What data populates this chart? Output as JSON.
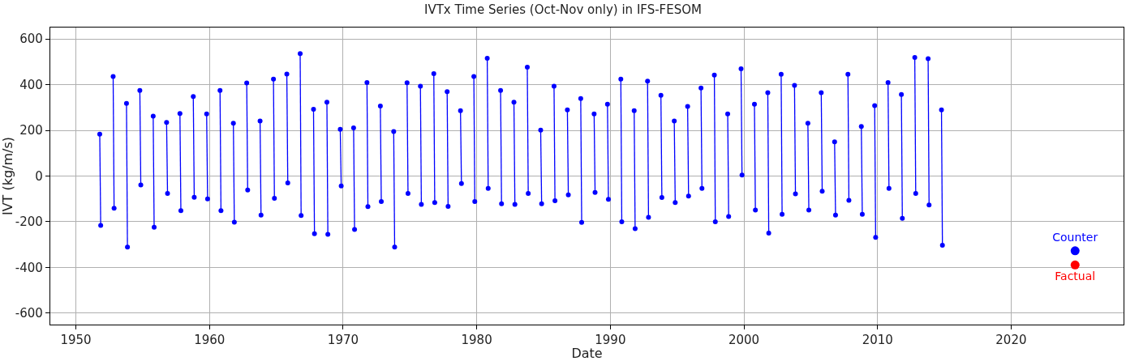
{
  "chart_data": {
    "type": "line",
    "title": "IVTx Time Series (Oct-Nov only) in IFS-FESOM",
    "xlabel": "Date",
    "ylabel": "IVT (kg/m/s)",
    "xlim": [
      "1948-02-01",
      "2028-06-01"
    ],
    "xticks": [
      "1950",
      "1960",
      "1970",
      "1980",
      "1990",
      "2000",
      "2010",
      "2020"
    ],
    "ylim": [
      -650,
      650
    ],
    "yticks": [
      -600,
      -400,
      -200,
      0,
      200,
      400,
      600
    ],
    "grid": true,
    "marker": "circle",
    "line_style": "solid",
    "series": [
      {
        "color": "#0000ff",
        "x": [
          "1951-10-15",
          "1951-11-10",
          "1952-06-01",
          "1952-10-15",
          "1952-11-10",
          "1953-06-01",
          "1953-10-15",
          "1953-11-10",
          "1954-06-01",
          "1954-10-15",
          "1954-11-10",
          "1955-06-01",
          "1955-10-15",
          "1955-11-10",
          "1956-06-01",
          "1956-10-15",
          "1956-11-10",
          "1957-06-01",
          "1957-10-15",
          "1957-11-10",
          "1958-06-01",
          "1958-10-15",
          "1958-11-10",
          "1959-06-01",
          "1959-10-15",
          "1959-11-10",
          "1960-06-01",
          "1960-10-15",
          "1960-11-10",
          "1961-06-01",
          "1961-10-15",
          "1961-11-10",
          "1962-06-01",
          "1962-10-15",
          "1962-11-10",
          "1963-06-01",
          "1963-10-15",
          "1963-11-10",
          "1964-06-01",
          "1964-10-15",
          "1964-11-10",
          "1965-06-01",
          "1965-10-15",
          "1965-11-10",
          "1966-06-01",
          "1966-10-15",
          "1966-11-10",
          "1967-06-01",
          "1967-10-15",
          "1967-11-10",
          "1968-06-01",
          "1968-10-15",
          "1968-11-10",
          "1969-06-01",
          "1969-10-15",
          "1969-11-10",
          "1970-06-01",
          "1970-10-15",
          "1970-11-10",
          "1971-06-01",
          "1971-10-15",
          "1971-11-10",
          "1972-06-01",
          "1972-10-15",
          "1972-11-10",
          "1973-06-01",
          "1973-10-15",
          "1973-11-10",
          "1974-06-01",
          "1974-10-15",
          "1974-11-10",
          "1975-06-01",
          "1975-10-15",
          "1975-11-10",
          "1976-06-01",
          "1976-10-15",
          "1976-11-10",
          "1977-06-01",
          "1977-10-15",
          "1977-11-10",
          "1978-06-01",
          "1978-10-15",
          "1978-11-10",
          "1979-06-01",
          "1979-10-15",
          "1979-11-10",
          "1980-06-01",
          "1980-10-15",
          "1980-11-10",
          "1981-06-01",
          "1981-10-15",
          "1981-11-10",
          "1982-06-01",
          "1982-10-15",
          "1982-11-10",
          "1983-06-01",
          "1983-10-15",
          "1983-11-10",
          "1984-06-01",
          "1984-10-15",
          "1984-11-10",
          "1985-06-01",
          "1985-10-15",
          "1985-11-10",
          "1986-06-01",
          "1986-10-15",
          "1986-11-10",
          "1987-06-01",
          "1987-10-15",
          "1987-11-10",
          "1988-06-01",
          "1988-10-15",
          "1988-11-10",
          "1989-06-01",
          "1989-10-15",
          "1989-11-10",
          "1990-06-01",
          "1990-10-15",
          "1990-11-10",
          "1991-06-01",
          "1991-10-15",
          "1991-11-10",
          "1992-06-01",
          "1992-10-15",
          "1992-11-10",
          "1993-06-01",
          "1993-10-15",
          "1993-11-10",
          "1994-06-01",
          "1994-10-15",
          "1994-11-10",
          "1995-06-01",
          "1995-10-15",
          "1995-11-10",
          "1996-06-01",
          "1996-10-15",
          "1996-11-10",
          "1997-06-01",
          "1997-10-15",
          "1997-11-10",
          "1998-06-01",
          "1998-10-15",
          "1998-11-10",
          "1999-06-01",
          "1999-10-15",
          "1999-11-10",
          "2000-06-01",
          "2000-10-15",
          "2000-11-10",
          "2001-06-01",
          "2001-10-15",
          "2001-11-10",
          "2002-06-01",
          "2002-10-15",
          "2002-11-10",
          "2003-06-01",
          "2003-10-15",
          "2003-11-10",
          "2004-06-01",
          "2004-10-15",
          "2004-11-10",
          "2005-06-01",
          "2005-10-15",
          "2005-11-10",
          "2006-06-01",
          "2006-10-15",
          "2006-11-10",
          "2007-06-01",
          "2007-10-15",
          "2007-11-10",
          "2008-06-01",
          "2008-10-15",
          "2008-11-10",
          "2009-06-01",
          "2009-10-15",
          "2009-11-10",
          "2010-06-01",
          "2010-10-15",
          "2010-11-10",
          "2011-06-01",
          "2011-10-15",
          "2011-11-10",
          "2012-06-01",
          "2012-10-15",
          "2012-11-10",
          "2013-06-01",
          "2013-10-15",
          "2013-11-10",
          "2014-06-01",
          "2014-10-15",
          "2014-11-10"
        ],
        "values": [
          183,
          -216,
          null,
          436,
          -141,
          null,
          318,
          -311,
          null,
          375,
          -39,
          null,
          262,
          -224,
          null,
          235,
          -76,
          null,
          274,
          -151,
          null,
          348,
          -93,
          null,
          272,
          -100,
          null,
          375,
          -151,
          null,
          231,
          -202,
          null,
          407,
          -61,
          null,
          241,
          -171,
          null,
          424,
          -97,
          null,
          446,
          -30,
          null,
          536,
          -173,
          null,
          292,
          -252,
          null,
          323,
          -255,
          null,
          205,
          -43,
          null,
          211,
          -234,
          null,
          409,
          -134,
          null,
          306,
          -112,
          null,
          195,
          -311,
          null,
          408,
          -76,
          null,
          393,
          -124,
          null,
          448,
          -116,
          null,
          369,
          -133,
          null,
          286,
          -33,
          null,
          436,
          -112,
          null,
          515,
          -54,
          null,
          375,
          -121,
          null,
          323,
          -124,
          null,
          476,
          -76,
          null,
          201,
          -121,
          null,
          393,
          -108,
          null,
          290,
          -82,
          null,
          339,
          -203,
          null,
          272,
          -72,
          null,
          314,
          -102,
          null,
          424,
          -200,
          null,
          286,
          -230,
          null,
          415,
          -181,
          null,
          353,
          -94,
          null,
          241,
          -116,
          null,
          305,
          -88,
          null,
          385,
          -54,
          null,
          442,
          -200,
          null,
          272,
          -177,
          null,
          469,
          4,
          null,
          314,
          -149,
          null,
          365,
          -250,
          null,
          445,
          -167,
          null,
          397,
          -78,
          null,
          231,
          -149,
          null,
          365,
          -66,
          null,
          150,
          -171,
          null,
          445,
          -106,
          null,
          217,
          -167,
          null,
          308,
          -268,
          null,
          409,
          -54,
          null,
          357,
          -185,
          null,
          519,
          -76,
          null,
          514,
          -127,
          null,
          290,
          -303
        ]
      },
      {
        "type": "scatter",
        "name": "Counter",
        "color": "#0000ff",
        "x": [
          "2024-10-15"
        ],
        "values": [
          -327
        ]
      },
      {
        "type": "scatter",
        "name": "Factual",
        "color": "#ff0000",
        "x": [
          "2024-10-15"
        ],
        "values": [
          -389
        ]
      }
    ]
  }
}
